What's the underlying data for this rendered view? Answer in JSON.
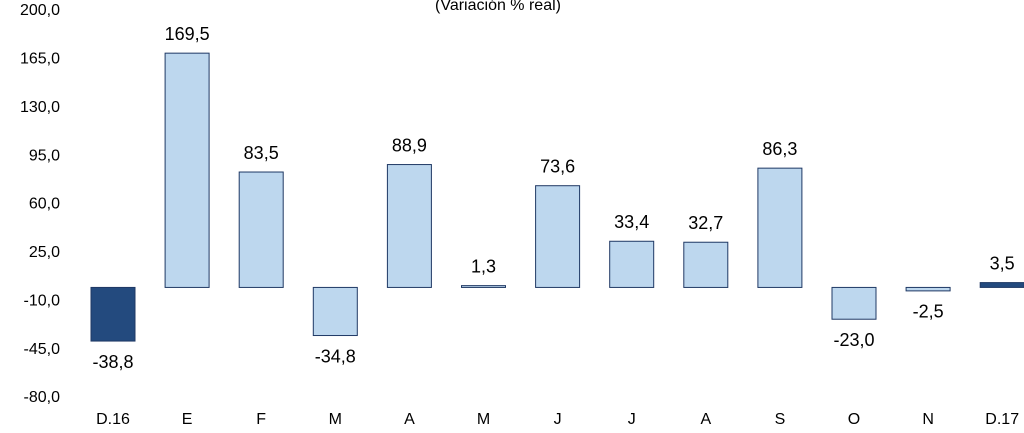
{
  "chart_data": {
    "type": "bar",
    "title": "(Variación % real)",
    "categories": [
      "D.16",
      "E",
      "F",
      "M",
      "A",
      "M",
      "J",
      "J",
      "A",
      "S",
      "O",
      "N",
      "D.17"
    ],
    "values": [
      -38.8,
      169.5,
      83.5,
      -34.8,
      88.9,
      1.3,
      73.6,
      33.4,
      32.7,
      86.3,
      -23.0,
      -2.5,
      3.5
    ],
    "value_labels": [
      "-38,8",
      "169,5",
      "83,5",
      "-34,8",
      "88,9",
      "1,3",
      "73,6",
      "33,4",
      "32,7",
      "86,3",
      "-23,0",
      "-2,5",
      "3,5"
    ],
    "colors": [
      "#234a7e",
      "#bdd7ee",
      "#bdd7ee",
      "#bdd7ee",
      "#bdd7ee",
      "#bdd7ee",
      "#bdd7ee",
      "#bdd7ee",
      "#bdd7ee",
      "#bdd7ee",
      "#bdd7ee",
      "#bdd7ee",
      "#234a7e"
    ],
    "ylim": [
      -80,
      200
    ],
    "yticks": [
      {
        "value": 200,
        "label": "200,0"
      },
      {
        "value": 165,
        "label": "165,0"
      },
      {
        "value": 130,
        "label": "130,0"
      },
      {
        "value": 95,
        "label": "95,0"
      },
      {
        "value": 60,
        "label": "60,0"
      },
      {
        "value": 25,
        "label": "25,0"
      },
      {
        "value": -10,
        "label": "-10,0"
      },
      {
        "value": -45,
        "label": "-45,0"
      },
      {
        "value": -80,
        "label": "-80,0"
      }
    ],
    "grid": false
  }
}
